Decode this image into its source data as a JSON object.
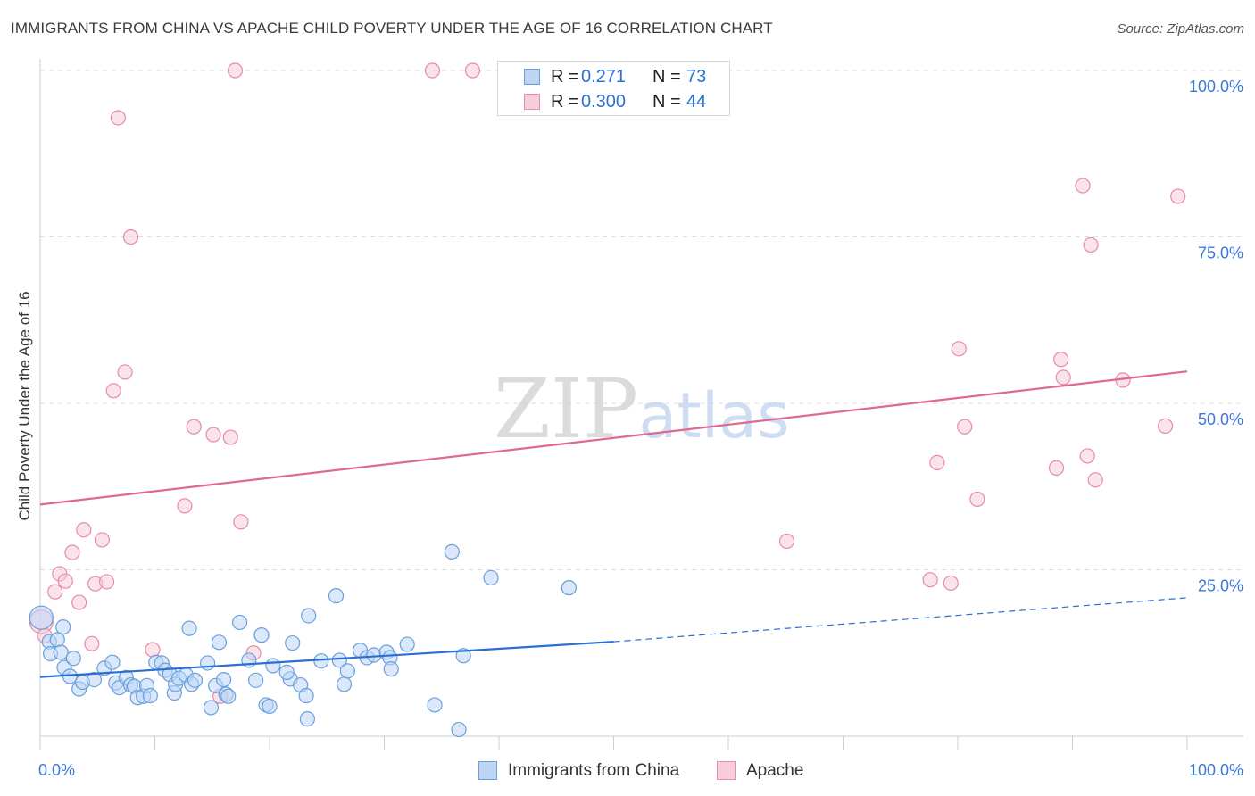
{
  "title": "IMMIGRANTS FROM CHINA VS APACHE CHILD POVERTY UNDER THE AGE OF 16 CORRELATION CHART",
  "source": "Source: ZipAtlas.com",
  "watermark": {
    "zip": "ZIP",
    "atlas": "atlas"
  },
  "colors": {
    "blue_fill": "#bcd5f5",
    "blue_stroke": "#6a9fdc",
    "blue_line": "#2b6fd3",
    "pink_fill": "#f8ccd9",
    "pink_stroke": "#e88aa8",
    "pink_line": "#e06892",
    "tick_label": "#3c78d8",
    "grid": "#dcdcdc"
  },
  "legend_top": {
    "rows": [
      {
        "r_label": "R =",
        "r_value": "0.271",
        "n_label": "N =",
        "n_value": "73",
        "color": "blue"
      },
      {
        "r_label": "R =",
        "r_value": "0.300",
        "n_label": "N =",
        "n_value": "44",
        "color": "pink"
      }
    ]
  },
  "legend_bottom": [
    {
      "label": "Immigrants from China",
      "color": "blue"
    },
    {
      "label": "Apache",
      "color": "pink"
    }
  ],
  "chart_data": {
    "type": "scatter",
    "title": "IMMIGRANTS FROM CHINA VS APACHE CHILD POVERTY UNDER THE AGE OF 16 CORRELATION CHART",
    "xlabel": "",
    "ylabel": "Child Poverty Under the Age of 16",
    "xlim": [
      0,
      100
    ],
    "ylim": [
      0,
      100
    ],
    "x_tick_labels": [
      "0.0%",
      "100.0%"
    ],
    "y_tick_values": [
      25,
      50,
      75,
      100
    ],
    "y_tick_labels": [
      "25.0%",
      "50.0%",
      "75.0%",
      "100.0%"
    ],
    "grid": true,
    "legend_position": "top-center",
    "series": [
      {
        "name": "Immigrants from China",
        "color": "blue",
        "R": 0.271,
        "N": 73,
        "trend": {
          "x0": 0,
          "y0": 8.9,
          "x1": 50,
          "y1": 14.2,
          "dashed_to_x": 100,
          "dashed_to_y": 20.8
        },
        "points": [
          [
            0.1,
            17.8
          ],
          [
            0.8,
            14.2
          ],
          [
            0.9,
            12.4
          ],
          [
            1.5,
            14.5
          ],
          [
            1.8,
            12.6
          ],
          [
            2.1,
            10.3
          ],
          [
            2.6,
            9.0
          ],
          [
            2.9,
            11.7
          ],
          [
            3.4,
            7.1
          ],
          [
            3.7,
            8.1
          ],
          [
            4.7,
            8.5
          ],
          [
            5.6,
            10.2
          ],
          [
            6.3,
            11.1
          ],
          [
            6.6,
            8.0
          ],
          [
            6.9,
            7.3
          ],
          [
            7.5,
            8.8
          ],
          [
            7.9,
            7.7
          ],
          [
            8.2,
            7.5
          ],
          [
            8.5,
            5.8
          ],
          [
            9.0,
            6.0
          ],
          [
            9.3,
            7.6
          ],
          [
            9.6,
            6.1
          ],
          [
            10.1,
            11.1
          ],
          [
            10.6,
            11.0
          ],
          [
            10.9,
            9.9
          ],
          [
            11.3,
            9.3
          ],
          [
            11.7,
            6.5
          ],
          [
            11.8,
            7.8
          ],
          [
            12.1,
            8.7
          ],
          [
            12.7,
            9.2
          ],
          [
            13.2,
            7.8
          ],
          [
            13.5,
            8.4
          ],
          [
            13.0,
            16.2
          ],
          [
            14.6,
            11.0
          ],
          [
            14.9,
            4.3
          ],
          [
            15.3,
            7.6
          ],
          [
            15.6,
            14.1
          ],
          [
            16.0,
            8.5
          ],
          [
            16.2,
            6.3
          ],
          [
            16.4,
            6.0
          ],
          [
            17.4,
            17.1
          ],
          [
            18.2,
            11.4
          ],
          [
            18.8,
            8.4
          ],
          [
            19.3,
            15.2
          ],
          [
            19.7,
            4.7
          ],
          [
            20.0,
            4.5
          ],
          [
            20.3,
            10.6
          ],
          [
            21.8,
            8.6
          ],
          [
            22.0,
            14.0
          ],
          [
            22.7,
            7.7
          ],
          [
            23.2,
            6.1
          ],
          [
            23.3,
            2.6
          ],
          [
            21.5,
            9.6
          ],
          [
            23.4,
            18.1
          ],
          [
            24.5,
            11.3
          ],
          [
            25.8,
            21.1
          ],
          [
            26.1,
            11.4
          ],
          [
            26.5,
            7.8
          ],
          [
            26.8,
            9.8
          ],
          [
            27.9,
            12.9
          ],
          [
            28.5,
            11.8
          ],
          [
            29.1,
            12.2
          ],
          [
            30.2,
            12.6
          ],
          [
            30.5,
            11.8
          ],
          [
            30.6,
            10.1
          ],
          [
            32.0,
            13.8
          ],
          [
            34.4,
            4.7
          ],
          [
            35.9,
            27.7
          ],
          [
            36.5,
            1.0
          ],
          [
            36.9,
            12.1
          ],
          [
            39.3,
            23.8
          ],
          [
            46.1,
            22.3
          ],
          [
            2.0,
            16.4
          ]
        ]
      },
      {
        "name": "Apache",
        "color": "pink",
        "R": 0.3,
        "N": 44,
        "trend": {
          "x0": 0,
          "y0": 34.8,
          "x1": 100,
          "y1": 54.8
        },
        "points": [
          [
            0.1,
            17.2
          ],
          [
            0.4,
            15.1
          ],
          [
            1.3,
            21.7
          ],
          [
            1.7,
            24.4
          ],
          [
            2.2,
            23.3
          ],
          [
            2.8,
            27.6
          ],
          [
            3.4,
            20.1
          ],
          [
            3.8,
            31.0
          ],
          [
            4.5,
            13.9
          ],
          [
            4.8,
            22.9
          ],
          [
            5.4,
            29.5
          ],
          [
            5.8,
            23.2
          ],
          [
            6.4,
            51.9
          ],
          [
            6.8,
            92.9
          ],
          [
            7.4,
            54.7
          ],
          [
            7.9,
            75.0
          ],
          [
            9.8,
            13.0
          ],
          [
            12.6,
            34.6
          ],
          [
            13.4,
            46.5
          ],
          [
            15.1,
            45.3
          ],
          [
            15.7,
            6.0
          ],
          [
            16.6,
            44.9
          ],
          [
            17.0,
            100.0
          ],
          [
            17.5,
            32.2
          ],
          [
            18.6,
            12.5
          ],
          [
            34.2,
            100.0
          ],
          [
            37.7,
            100.0
          ],
          [
            65.1,
            29.3
          ],
          [
            77.6,
            23.5
          ],
          [
            78.2,
            41.1
          ],
          [
            79.4,
            23.0
          ],
          [
            80.1,
            58.2
          ],
          [
            80.6,
            46.5
          ],
          [
            81.7,
            35.6
          ],
          [
            88.6,
            40.3
          ],
          [
            89.0,
            56.6
          ],
          [
            89.2,
            53.9
          ],
          [
            90.9,
            82.7
          ],
          [
            91.3,
            42.1
          ],
          [
            91.6,
            73.8
          ],
          [
            92.0,
            38.5
          ],
          [
            94.4,
            53.5
          ],
          [
            98.1,
            46.6
          ],
          [
            99.2,
            81.1
          ]
        ]
      }
    ]
  }
}
